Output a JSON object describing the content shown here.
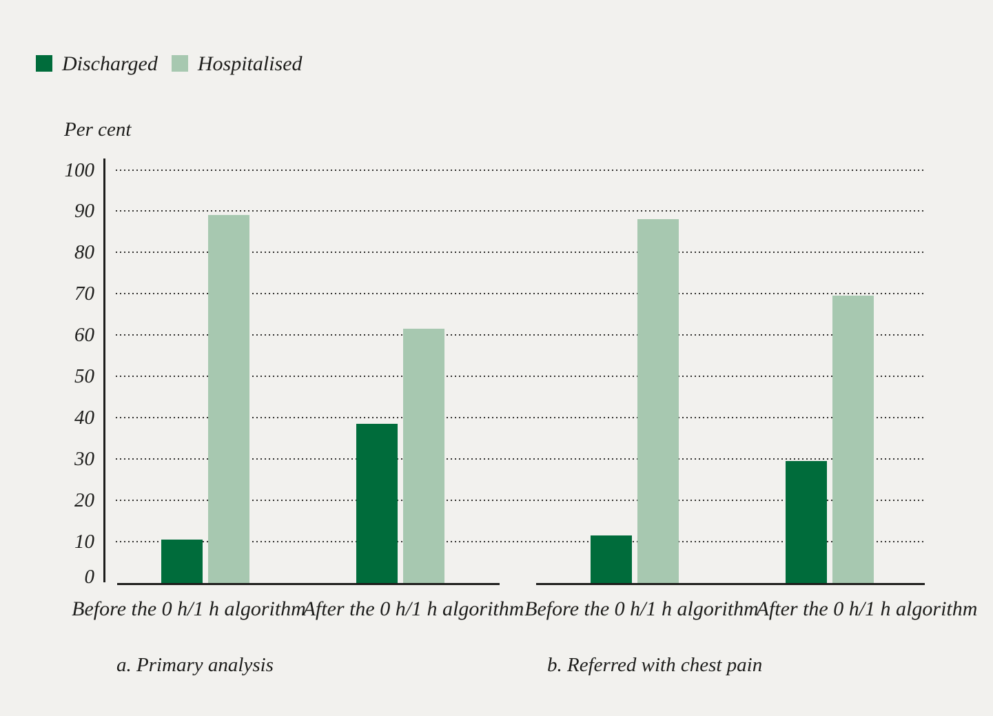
{
  "colors": {
    "background": "#f2f1ee",
    "discharged": "#006c3b",
    "hospitalised": "#a7c8b0",
    "text": "#1d1d1b",
    "grid_dots": "#2e2d2b",
    "axis": "#1d1d1b"
  },
  "legend": [
    {
      "label": "Discharged",
      "color_key": "discharged"
    },
    {
      "label": "Hospitalised",
      "color_key": "hospitalised"
    }
  ],
  "chart_data": {
    "type": "bar",
    "title": "",
    "ylabel": "Per cent",
    "xlabel": "",
    "ylim": [
      0,
      100
    ],
    "yticks": [
      0,
      10,
      20,
      30,
      40,
      50,
      60,
      70,
      80,
      90,
      100
    ],
    "grid": "horizontal dotted lines at every 10 units",
    "legend_position": "top-left",
    "series_names": [
      "Discharged",
      "Hospitalised"
    ],
    "panels": [
      {
        "caption": "a. Primary analysis",
        "categories": [
          "Before the 0 h/1 h algorithm",
          "After the 0 h/1 h algorithm"
        ],
        "series": [
          {
            "name": "Discharged",
            "values": [
              10.5,
              38.5
            ]
          },
          {
            "name": "Hospitalised",
            "values": [
              89,
              61.5
            ]
          }
        ]
      },
      {
        "caption": "b. Referred with chest pain",
        "categories": [
          "Before the 0 h/1 h algorithm",
          "After the 0 h/1 h algorithm"
        ],
        "series": [
          {
            "name": "Discharged",
            "values": [
              11.5,
              29.5
            ]
          },
          {
            "name": "Hospitalised",
            "values": [
              88,
              69.5
            ]
          }
        ]
      }
    ]
  }
}
